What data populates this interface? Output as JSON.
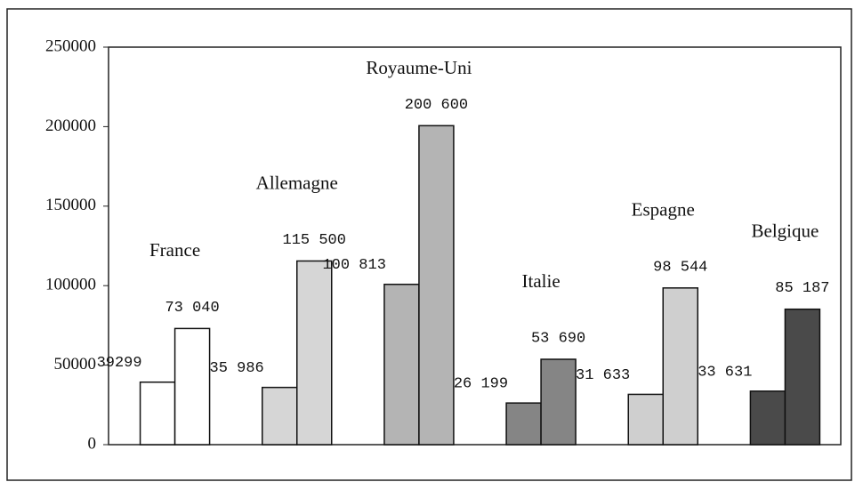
{
  "chart_data": {
    "type": "bar",
    "categories": [
      "France",
      "Allemagne",
      "Royaume-Uni",
      "Italie",
      "Espagne",
      "Belgique"
    ],
    "colors": [
      "#ffffff",
      "#d6d6d6",
      "#b4b4b4",
      "#858585",
      "#cfcfcf",
      "#4a4a4a"
    ],
    "series": [
      {
        "values": [
          39299,
          35986,
          100813,
          26199,
          31633,
          33631
        ],
        "value_labels": [
          "39299",
          "35 986",
          "100 813",
          "26 199",
          "31 633",
          "33 631"
        ]
      },
      {
        "values": [
          73040,
          115500,
          200600,
          53690,
          98544,
          85187
        ],
        "value_labels": [
          "73 040",
          "115 500",
          "200 600",
          "53 690",
          "98 544",
          "85 187"
        ]
      }
    ],
    "ylim": [
      0,
      250000
    ],
    "yticks": [
      0,
      50000,
      100000,
      150000,
      200000,
      250000
    ],
    "grid": false
  }
}
